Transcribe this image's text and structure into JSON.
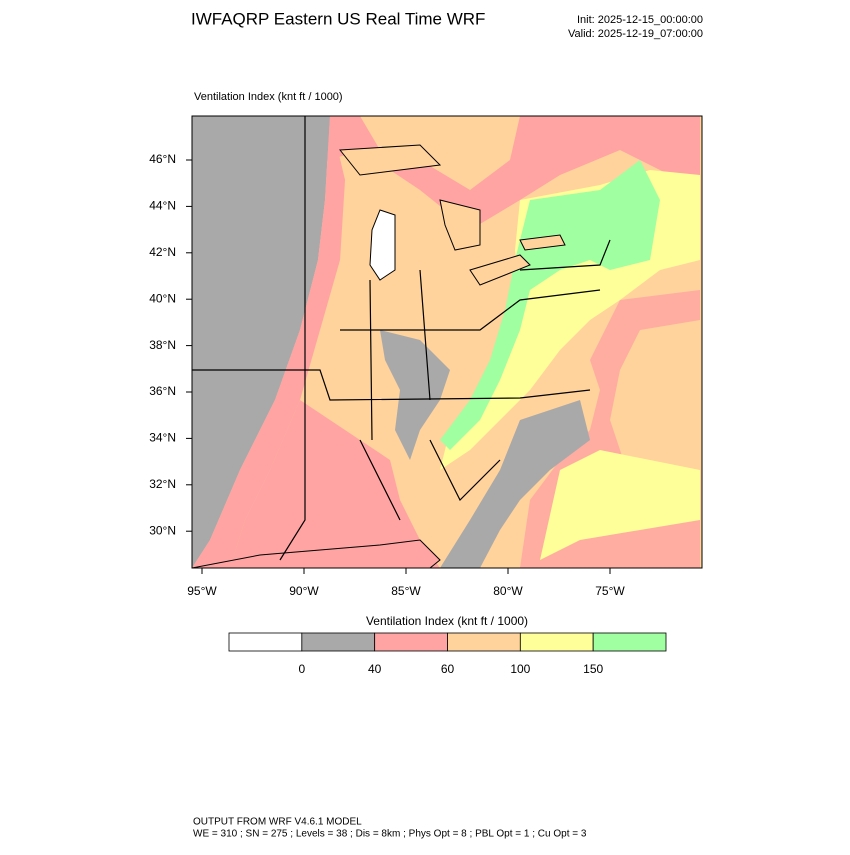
{
  "header": {
    "title": "IWFAQRP Eastern US Real Time WRF",
    "init": "Init: 2025-12-15_00:00:00",
    "valid": "Valid: 2025-12-19_07:00:00"
  },
  "map": {
    "subtitle": "Ventilation Index   (knt ft / 1000)",
    "lat_labels": [
      "46°N",
      "44°N",
      "42°N",
      "40°N",
      "38°N",
      "36°N",
      "34°N",
      "32°N",
      "30°N"
    ],
    "lon_labels": [
      "95°W",
      "90°W",
      "85°W",
      "80°W",
      "75°W"
    ]
  },
  "legend": {
    "title": "Ventilation Index  (knt ft / 1000)",
    "ticks": [
      0,
      40,
      60,
      100,
      150
    ],
    "colors": [
      "#ffffff",
      "#a9a9a9",
      "#ffa3a3",
      "#ffd39b",
      "#ffff99",
      "#a0ffa0"
    ]
  },
  "footer": {
    "line1": "OUTPUT FROM WRF V4.6.1 MODEL",
    "line2": "WE = 310 ; SN = 275 ; Levels = 38 ; Dis = 8km ; Phys Opt = 8 ; PBL Opt = 1 ; Cu Opt = 3"
  }
}
